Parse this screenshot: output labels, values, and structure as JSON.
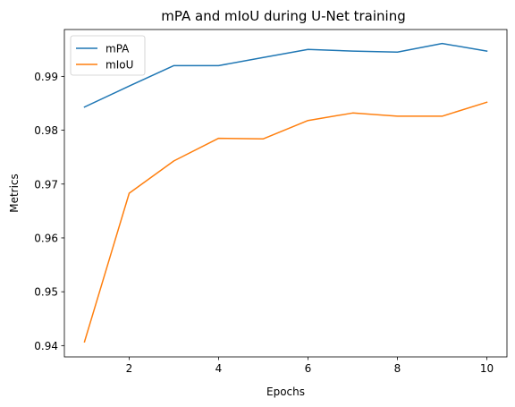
{
  "chart_data": {
    "type": "line",
    "title": "mPA and mIoU during U-Net training",
    "xlabel": "Epochs",
    "ylabel": "Metrics",
    "x": [
      1,
      2,
      3,
      4,
      5,
      6,
      7,
      8,
      9,
      10
    ],
    "xlim": [
      0.55,
      10.45
    ],
    "ylim": [
      0.9379,
      0.9987
    ],
    "xticks": [
      2,
      4,
      6,
      8,
      10
    ],
    "yticks": [
      0.94,
      0.95,
      0.96,
      0.97,
      0.98,
      0.99
    ],
    "xtick_labels": [
      "2",
      "4",
      "6",
      "8",
      "10"
    ],
    "ytick_labels": [
      "0.94",
      "0.95",
      "0.96",
      "0.97",
      "0.98",
      "0.99"
    ],
    "grid": false,
    "legend_position": "top-left",
    "series": [
      {
        "name": "mPA",
        "color": "#1f77b4",
        "values": [
          0.9843,
          0.9882,
          0.992,
          0.992,
          0.9935,
          0.995,
          0.9947,
          0.9945,
          0.9961,
          0.9947
        ]
      },
      {
        "name": "mIoU",
        "color": "#ff7f0e",
        "values": [
          0.9407,
          0.9683,
          0.9743,
          0.9785,
          0.9784,
          0.9818,
          0.9832,
          0.9826,
          0.9826,
          0.9852
        ]
      }
    ]
  }
}
